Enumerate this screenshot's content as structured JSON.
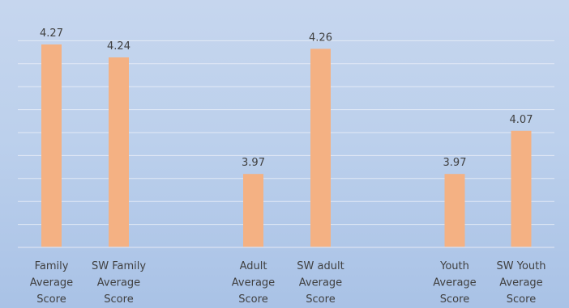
{
  "chart_data": {
    "type": "bar",
    "categories": [
      [
        "Family",
        "Average",
        "Score"
      ],
      [
        "SW Family",
        "Average",
        "Score"
      ],
      [
        "Adult",
        "Average",
        "Score"
      ],
      [
        "SW adult",
        "Average",
        "Score"
      ],
      [
        "Youth",
        "Average",
        "Score"
      ],
      [
        "SW Youth",
        "Average",
        "Score"
      ]
    ],
    "values": [
      4.27,
      4.24,
      3.97,
      4.26,
      3.97,
      4.07
    ],
    "data_labels": [
      "4.27",
      "4.24",
      "3.97",
      "4.26",
      "3.97",
      "4.07"
    ],
    "groups": [
      [
        "Family",
        "SW Family"
      ],
      [
        "Adult",
        "SW adult"
      ],
      [
        "Youth",
        "SW Youth"
      ]
    ],
    "title": "",
    "xlabel": "",
    "ylabel": "",
    "ylim": [
      3.8,
      4.3
    ],
    "grid": true,
    "bar_color": "#f4b183",
    "background_color": "#bcd0ec",
    "legend": "none"
  }
}
